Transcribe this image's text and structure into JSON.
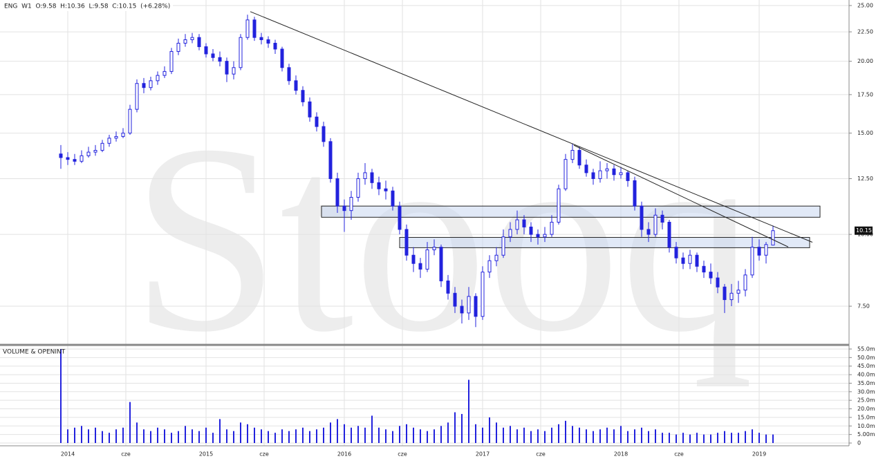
{
  "chart_data": {
    "type": "candlestick",
    "legend_text": "ENG  W1  O:9.58  H:10.36  L:9.58  C:10.15  (+6.28%)",
    "watermark": "Stooq",
    "volume_title": "VOLUME & OPENINT",
    "color": "#2222dd",
    "log_scale": true,
    "grid": true,
    "xlim": [
      2013.51,
      2019.65
    ],
    "xticks": [
      2014,
      {
        "value": 2014.42,
        "label": "cze"
      },
      2015,
      {
        "value": 2015.42,
        "label": "cze"
      },
      2016,
      {
        "value": 2016.42,
        "label": "cze"
      },
      2017,
      {
        "value": 2017.42,
        "label": "cze"
      },
      2018,
      {
        "value": 2018.42,
        "label": "cze"
      },
      2019
    ],
    "ylim": [
      6.46,
      25.56
    ],
    "yticks": [
      {
        "value": 7.5,
        "label": "7.50"
      },
      {
        "value": 10,
        "label": "10.00"
      },
      {
        "value": 12.5,
        "label": "12.50"
      },
      {
        "value": 15,
        "label": "15.00"
      },
      {
        "value": 17.5,
        "label": "17.50"
      },
      {
        "value": 20,
        "label": "20.00"
      },
      {
        "value": 22.5,
        "label": "22.50"
      },
      {
        "value": 25,
        "label": "25.00"
      }
    ],
    "volume_ylim": [
      0,
      56
    ],
    "volume_yticks": [
      0,
      {
        "value": 5,
        "label": "5.00m"
      },
      {
        "value": 10,
        "label": "10.0m"
      },
      {
        "value": 15,
        "label": "15.0m"
      },
      {
        "value": 20,
        "label": "20.0m"
      },
      {
        "value": 25,
        "label": "25.0m"
      },
      {
        "value": 30,
        "label": "30.0m"
      },
      {
        "value": 35,
        "label": "35.0m"
      },
      {
        "value": 40,
        "label": "40.0m"
      },
      {
        "value": 45,
        "label": "45.0m"
      },
      {
        "value": 50,
        "label": "50.0m"
      },
      {
        "value": 55,
        "label": "55.0m"
      }
    ],
    "trendlines": [
      [
        2015.32,
        24.4,
        2019.385,
        9.69
      ],
      [
        2017.66,
        14.29,
        2019.21,
        9.51
      ]
    ],
    "zones": [
      [
        2015.835,
        11.2,
        2019.44,
        10.71
      ],
      [
        2016.4,
        9.88,
        2019.365,
        9.48
      ]
    ],
    "candles": [
      [
        2013.95,
        13.8,
        14.3,
        13.0,
        13.6
      ],
      [
        2014.0,
        13.6,
        13.9,
        13.2,
        13.5
      ],
      [
        2014.05,
        13.5,
        13.8,
        13.2,
        13.4
      ],
      [
        2014.1,
        13.4,
        14.0,
        13.3,
        13.7
      ],
      [
        2014.15,
        13.7,
        14.2,
        13.6,
        13.9
      ],
      [
        2014.2,
        13.9,
        14.3,
        13.7,
        14.0
      ],
      [
        2014.25,
        14.0,
        14.6,
        13.9,
        14.4
      ],
      [
        2014.3,
        14.4,
        14.9,
        14.2,
        14.7
      ],
      [
        2014.35,
        14.7,
        15.1,
        14.5,
        14.8
      ],
      [
        2014.4,
        14.8,
        15.3,
        14.7,
        15.0
      ],
      [
        2014.45,
        15.0,
        16.8,
        14.9,
        16.5
      ],
      [
        2014.5,
        16.5,
        18.6,
        16.3,
        18.3
      ],
      [
        2014.55,
        18.3,
        18.7,
        17.6,
        18.0
      ],
      [
        2014.6,
        18.0,
        18.8,
        17.8,
        18.5
      ],
      [
        2014.65,
        18.5,
        19.2,
        18.2,
        18.9
      ],
      [
        2014.7,
        18.9,
        19.6,
        18.7,
        19.2
      ],
      [
        2014.75,
        19.2,
        21.1,
        19.0,
        20.8
      ],
      [
        2014.8,
        20.8,
        21.9,
        20.5,
        21.5
      ],
      [
        2014.85,
        21.5,
        22.3,
        21.2,
        21.8
      ],
      [
        2014.9,
        21.8,
        22.4,
        21.5,
        22.0
      ],
      [
        2014.95,
        22.0,
        22.3,
        20.9,
        21.2
      ],
      [
        2015.0,
        21.2,
        21.5,
        20.3,
        20.6
      ],
      [
        2015.05,
        20.6,
        21.0,
        20.0,
        20.3
      ],
      [
        2015.1,
        20.3,
        20.8,
        19.6,
        20.0
      ],
      [
        2015.15,
        20.0,
        20.3,
        18.4,
        19.0
      ],
      [
        2015.2,
        19.0,
        20.0,
        18.6,
        19.5
      ],
      [
        2015.25,
        19.5,
        22.3,
        19.3,
        22.0
      ],
      [
        2015.3,
        22.0,
        24.1,
        21.8,
        23.6
      ],
      [
        2015.35,
        23.6,
        23.9,
        21.7,
        22.0
      ],
      [
        2015.4,
        22.0,
        22.4,
        21.4,
        21.8
      ],
      [
        2015.45,
        21.8,
        22.1,
        21.1,
        21.5
      ],
      [
        2015.5,
        21.5,
        21.8,
        20.6,
        21.0
      ],
      [
        2015.55,
        21.0,
        21.2,
        19.2,
        19.5
      ],
      [
        2015.6,
        19.5,
        19.8,
        18.2,
        18.5
      ],
      [
        2015.65,
        18.5,
        18.9,
        17.5,
        17.8
      ],
      [
        2015.7,
        17.8,
        18.1,
        16.7,
        17.0
      ],
      [
        2015.75,
        17.0,
        17.3,
        15.7,
        16.0
      ],
      [
        2015.8,
        16.0,
        16.3,
        15.1,
        15.4
      ],
      [
        2015.85,
        15.4,
        15.7,
        14.2,
        14.5
      ],
      [
        2015.9,
        14.5,
        14.7,
        12.3,
        12.5
      ],
      [
        2015.95,
        12.5,
        12.8,
        10.9,
        11.2
      ],
      [
        2016.0,
        11.2,
        11.5,
        10.1,
        11.0
      ],
      [
        2016.05,
        11.0,
        11.9,
        10.6,
        11.6
      ],
      [
        2016.1,
        11.6,
        12.8,
        11.4,
        12.5
      ],
      [
        2016.15,
        12.5,
        13.3,
        12.2,
        12.8
      ],
      [
        2016.2,
        12.8,
        13.0,
        12.0,
        12.3
      ],
      [
        2016.25,
        12.3,
        12.6,
        11.7,
        12.0
      ],
      [
        2016.3,
        12.0,
        12.4,
        11.5,
        11.9
      ],
      [
        2016.35,
        11.9,
        12.1,
        11.0,
        11.2
      ],
      [
        2016.4,
        11.2,
        11.4,
        10.0,
        10.2
      ],
      [
        2016.45,
        10.2,
        10.4,
        9.0,
        9.2
      ],
      [
        2016.5,
        9.2,
        9.5,
        8.6,
        8.9
      ],
      [
        2016.55,
        8.9,
        9.1,
        8.4,
        8.7
      ],
      [
        2016.6,
        8.7,
        9.7,
        8.6,
        9.4
      ],
      [
        2016.65,
        9.4,
        9.8,
        9.2,
        9.5
      ],
      [
        2016.7,
        9.5,
        9.6,
        8.1,
        8.3
      ],
      [
        2016.75,
        8.3,
        8.5,
        7.7,
        7.9
      ],
      [
        2016.8,
        7.9,
        8.1,
        7.3,
        7.5
      ],
      [
        2016.85,
        7.5,
        7.7,
        7.0,
        7.3
      ],
      [
        2016.9,
        7.3,
        8.1,
        7.1,
        7.8
      ],
      [
        2016.95,
        7.8,
        7.9,
        6.9,
        7.2
      ],
      [
        2017.0,
        7.2,
        8.8,
        7.1,
        8.6
      ],
      [
        2017.05,
        8.6,
        9.2,
        8.4,
        9.0
      ],
      [
        2017.1,
        9.0,
        9.5,
        8.8,
        9.2
      ],
      [
        2017.15,
        9.2,
        10.2,
        9.1,
        9.9
      ],
      [
        2017.2,
        9.9,
        10.5,
        9.7,
        10.2
      ],
      [
        2017.25,
        10.2,
        11.0,
        10.0,
        10.6
      ],
      [
        2017.3,
        10.6,
        10.8,
        10.0,
        10.3
      ],
      [
        2017.35,
        10.3,
        10.5,
        9.7,
        10.0
      ],
      [
        2017.4,
        10.0,
        10.2,
        9.6,
        9.9
      ],
      [
        2017.45,
        9.9,
        10.3,
        9.7,
        10.0
      ],
      [
        2017.5,
        10.0,
        10.8,
        9.9,
        10.5
      ],
      [
        2017.55,
        10.5,
        12.2,
        10.4,
        12.0
      ],
      [
        2017.6,
        12.0,
        13.8,
        11.9,
        13.5
      ],
      [
        2017.65,
        13.5,
        14.4,
        13.3,
        14.0
      ],
      [
        2017.7,
        14.0,
        14.2,
        13.0,
        13.2
      ],
      [
        2017.75,
        13.2,
        13.5,
        12.6,
        12.8
      ],
      [
        2017.8,
        12.8,
        13.0,
        12.2,
        12.5
      ],
      [
        2017.85,
        12.5,
        13.4,
        12.3,
        12.9
      ],
      [
        2017.9,
        12.9,
        13.3,
        12.5,
        13.0
      ],
      [
        2017.95,
        13.0,
        13.2,
        12.4,
        12.7
      ],
      [
        2018.0,
        12.7,
        13.1,
        12.5,
        12.8
      ],
      [
        2018.05,
        12.8,
        12.9,
        12.1,
        12.4
      ],
      [
        2018.1,
        12.4,
        12.6,
        11.0,
        11.2
      ],
      [
        2018.15,
        11.2,
        11.4,
        9.9,
        10.2
      ],
      [
        2018.2,
        10.2,
        10.5,
        9.7,
        10.0
      ],
      [
        2018.25,
        10.0,
        11.1,
        9.9,
        10.8
      ],
      [
        2018.3,
        10.8,
        11.0,
        10.2,
        10.5
      ],
      [
        2018.35,
        10.5,
        10.6,
        9.3,
        9.5
      ],
      [
        2018.4,
        9.5,
        9.7,
        8.9,
        9.1
      ],
      [
        2018.45,
        9.1,
        9.3,
        8.7,
        8.9
      ],
      [
        2018.5,
        8.9,
        9.4,
        8.7,
        9.2
      ],
      [
        2018.55,
        9.2,
        9.3,
        8.6,
        8.8
      ],
      [
        2018.6,
        8.8,
        9.0,
        8.4,
        8.6
      ],
      [
        2018.65,
        8.6,
        8.9,
        8.2,
        8.4
      ],
      [
        2018.7,
        8.4,
        8.6,
        7.9,
        8.1
      ],
      [
        2018.75,
        8.1,
        8.2,
        7.3,
        7.7
      ],
      [
        2018.8,
        7.7,
        8.2,
        7.5,
        7.9
      ],
      [
        2018.85,
        7.9,
        8.3,
        7.6,
        8.0
      ],
      [
        2018.9,
        8.0,
        8.7,
        7.8,
        8.5
      ],
      [
        2018.95,
        8.5,
        9.9,
        8.4,
        9.5
      ],
      [
        2019.0,
        9.5,
        9.8,
        9.0,
        9.2
      ],
      [
        2019.05,
        9.2,
        9.7,
        8.9,
        9.6
      ],
      [
        2019.1,
        9.58,
        10.36,
        9.58,
        10.15
      ]
    ],
    "volume": [
      55,
      8,
      9,
      10,
      8,
      9,
      7,
      6,
      8,
      9,
      24,
      12,
      8,
      7,
      9,
      8,
      6,
      7,
      10,
      8,
      7,
      9,
      6,
      14,
      8,
      7,
      12,
      11,
      9,
      8,
      7,
      6,
      8,
      7,
      8,
      9,
      7,
      8,
      9,
      12,
      14,
      11,
      9,
      10,
      9,
      16,
      9,
      8,
      7,
      10,
      11,
      9,
      8,
      7,
      8,
      10,
      12,
      18,
      17,
      37,
      11,
      9,
      15,
      12,
      9,
      10,
      8,
      9,
      7,
      8,
      7,
      9,
      11,
      13,
      10,
      9,
      8,
      7,
      8,
      9,
      8,
      10,
      7,
      8,
      9,
      7,
      8,
      6,
      6,
      5,
      6,
      5,
      6,
      5,
      5,
      6,
      7,
      6,
      6,
      7,
      8,
      6,
      5,
      5
    ]
  }
}
